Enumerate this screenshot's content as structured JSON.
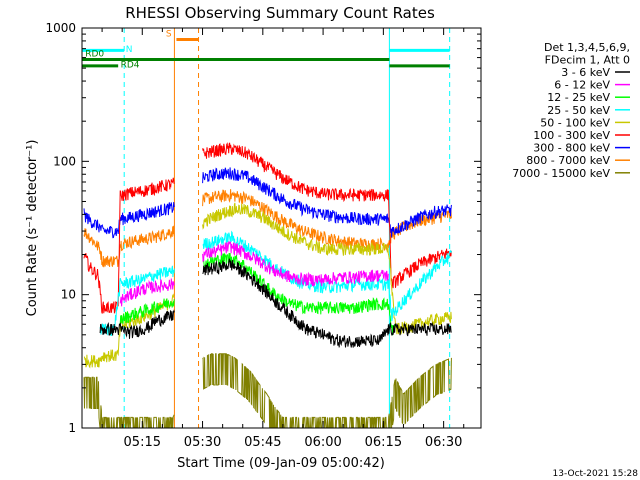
{
  "chart_data": {
    "type": "line",
    "title": "RHESSI Observing Summary Count Rates",
    "xlabel": "Start Time (09-Jan-09 05:00:42)",
    "ylabel": "Count Rate (s⁻¹ detector⁻¹)",
    "yscale": "log",
    "ylim": [
      1,
      1000
    ],
    "xlim": [
      "05:00:42",
      "06:40:00"
    ],
    "x_ticks": [
      "05:15",
      "05:30",
      "05:45",
      "06:00",
      "06:15",
      "06:30"
    ],
    "y_ticks": [
      "1",
      "10",
      "100",
      "1000"
    ],
    "x_tick_minutes": [
      15,
      30,
      45,
      60,
      75,
      90
    ],
    "legend": {
      "position": "top-right",
      "header": [
        "Det 1,3,4,5,6,9,",
        "FDecim 1, Att 0"
      ],
      "entries": [
        {
          "name": "3 - 6 keV",
          "color": "#000000"
        },
        {
          "name": "6 - 12 keV",
          "color": "#ff00ff"
        },
        {
          "name": "12 - 25 keV",
          "color": "#00ff00"
        },
        {
          "name": "25 - 50 keV",
          "color": "#00ffff"
        },
        {
          "name": "50 - 100 keV",
          "color": "#c8c800"
        },
        {
          "name": "100 - 300 keV",
          "color": "#ff0000"
        },
        {
          "name": "300 - 800 keV",
          "color": "#0000ff"
        },
        {
          "name": "800 - 7000 keV",
          "color": "#ff8000"
        },
        {
          "name": "7000 - 15000 keV",
          "color": "#808000"
        }
      ]
    },
    "annotations": [
      {
        "label": "RD0",
        "color": "#008000"
      },
      {
        "label": "RD4",
        "color": "#008000"
      },
      {
        "label": "N",
        "color": "#00ffff"
      },
      {
        "label": "S",
        "color": "#ff8000"
      }
    ],
    "flags": [
      {
        "label": "N",
        "color": "#00ffff",
        "level": 680,
        "segments": [
          [
            0,
            10.5
          ],
          [
            76.5,
            91.5
          ]
        ]
      },
      {
        "label": "S",
        "color": "#ff8000",
        "level": 820,
        "segments": [
          [
            23.5,
            29
          ]
        ]
      },
      {
        "label": "RD0",
        "color": "#008000",
        "level": 580,
        "segments": [
          [
            0,
            76.5
          ]
        ]
      },
      {
        "label": "RD4",
        "color": "#008000",
        "level": 520,
        "segments": [
          [
            0,
            9
          ],
          [
            76.5,
            91.5
          ]
        ]
      }
    ],
    "vlines": [
      {
        "minute": 10.5,
        "color": "#00ffff",
        "style": "dashed"
      },
      {
        "minute": 23.0,
        "color": "#ff8000",
        "style": "solid"
      },
      {
        "minute": 29.0,
        "color": "#ff8000",
        "style": "dashed"
      },
      {
        "minute": 76.5,
        "color": "#00ffff",
        "style": "solid"
      },
      {
        "minute": 91.5,
        "color": "#00ffff",
        "style": "dashed"
      }
    ],
    "gaps": [
      [
        23.0,
        30.0
      ]
    ],
    "series": [
      {
        "name": "3 - 6 keV",
        "color": "#000000",
        "x": [
          4.5,
          5,
          9,
          9.5,
          12,
          15,
          17,
          18,
          22.6,
          30.2,
          31,
          34,
          37,
          40,
          44,
          48,
          52,
          56,
          60,
          64,
          68,
          70,
          72,
          74,
          76.3,
          76.8,
          78,
          82,
          86,
          90,
          92
        ],
        "y": [
          5.5,
          5.5,
          5.5,
          5.5,
          5.2,
          5.5,
          5.8,
          6.3,
          7.0,
          15,
          15.5,
          16,
          17,
          15,
          12,
          9,
          7,
          5.5,
          5,
          4.5,
          4.5,
          4.5,
          4.5,
          4.5,
          5.5,
          5.5,
          5.5,
          5.5,
          5.5,
          5.5,
          5.5
        ]
      },
      {
        "name": "6 - 12 keV",
        "color": "#ff00ff",
        "x": [
          9.5,
          12,
          15,
          18,
          22.6,
          30.2,
          33,
          37,
          40,
          44,
          48,
          52,
          56,
          60,
          64,
          68,
          72,
          76.3
        ],
        "y": [
          9,
          10,
          11,
          11.5,
          12,
          20,
          21,
          23,
          21,
          18,
          15,
          13.5,
          13,
          13,
          13.5,
          13.5,
          14,
          14
        ]
      },
      {
        "name": "12 - 25 keV",
        "color": "#00ff00",
        "x": [
          9.5,
          12,
          15,
          18,
          22.6,
          30.2,
          33,
          37,
          40,
          44,
          48,
          52,
          56,
          60,
          64,
          68,
          72,
          76.3,
          77,
          78
        ],
        "y": [
          6.5,
          7,
          7.5,
          8,
          9,
          17,
          18,
          19,
          17,
          13,
          10,
          8.5,
          8,
          8,
          8,
          8,
          8.5,
          8.5,
          5.5,
          5.5
        ]
      },
      {
        "name": "25 - 50 keV",
        "color": "#00ffff",
        "x": [
          4.5,
          5,
          8,
          9.5,
          12,
          15,
          18,
          22.6,
          30.2,
          33,
          37,
          40,
          44,
          48,
          52,
          56,
          60,
          64,
          68,
          72,
          76.3,
          77,
          80,
          84,
          88,
          92
        ],
        "y": [
          5.5,
          5.5,
          5.5,
          12,
          12.5,
          13,
          14,
          15,
          24,
          25,
          27,
          24,
          20,
          16,
          13.5,
          12,
          11.5,
          11.5,
          12,
          12,
          12,
          7,
          9,
          12,
          16,
          20
        ]
      },
      {
        "name": "50 - 100 keV",
        "color": "#c8c800",
        "x": [
          0.5,
          4,
          4.5,
          5,
          9,
          9.5,
          12,
          15,
          18,
          22.6,
          30.2,
          34,
          38,
          41,
          45,
          50,
          55,
          60,
          65,
          70,
          76.3,
          78,
          82,
          86,
          88,
          92
        ],
        "y": [
          3.2,
          3.2,
          3.2,
          3.5,
          3.5,
          5.8,
          6.2,
          6.8,
          7.5,
          9,
          35,
          40,
          44,
          43,
          38,
          30,
          25,
          22,
          22,
          22,
          22,
          5.5,
          5.8,
          6.3,
          6.5,
          6.8
        ]
      },
      {
        "name": "100 - 300 keV",
        "color": "#ff0000",
        "x": [
          0.5,
          2,
          4,
          5,
          9,
          9.5,
          12,
          15,
          18,
          22.6,
          30.2,
          33,
          37,
          41,
          45,
          50,
          55,
          60,
          65,
          70,
          76.3,
          77,
          80,
          84,
          88,
          92
        ],
        "y": [
          20,
          16,
          14,
          8,
          8,
          55,
          58,
          60,
          63,
          68,
          115,
          120,
          125,
          115,
          95,
          75,
          62,
          57,
          56,
          56,
          56,
          12,
          14,
          17,
          19,
          21
        ]
      },
      {
        "name": "300 - 800 keV",
        "color": "#0000ff",
        "x": [
          0.5,
          2,
          4.5,
          5,
          9,
          9.5,
          12,
          15,
          18,
          22.6,
          30.2,
          33,
          37,
          41,
          45,
          50,
          55,
          60,
          65,
          70,
          76.3,
          77,
          80,
          84,
          88,
          92
        ],
        "y": [
          40,
          36,
          32,
          30,
          30,
          37,
          38,
          40,
          42,
          45,
          75,
          80,
          82,
          77,
          65,
          52,
          44,
          40,
          38,
          37,
          37,
          30,
          33,
          38,
          42,
          43
        ]
      },
      {
        "name": "800 - 7000 keV",
        "color": "#ff8000",
        "x": [
          0.5,
          2,
          4.5,
          5,
          9,
          9.5,
          12,
          15,
          18,
          22.6,
          30.2,
          33,
          37,
          41,
          45,
          50,
          55,
          60,
          65,
          70,
          76.3,
          77,
          80,
          84,
          88,
          92
        ],
        "y": [
          30,
          27,
          22,
          18,
          18,
          24,
          25,
          26,
          27,
          30,
          52,
          54,
          56,
          53,
          45,
          36,
          30,
          27,
          25,
          24,
          24,
          28,
          32,
          36,
          38,
          40
        ]
      },
      {
        "name": "7000 - 15000 keV",
        "color": "#808000",
        "x": [
          0.5,
          2,
          4,
          5,
          8,
          9.5,
          12,
          16,
          20,
          22.6,
          30.2,
          32,
          34,
          36,
          38,
          40,
          42,
          44,
          46,
          48,
          50,
          76.3,
          78,
          80,
          84,
          88,
          92
        ],
        "y": [
          2,
          2,
          2,
          1,
          1,
          1,
          1,
          1,
          1,
          1,
          2.8,
          3,
          3,
          3,
          2.8,
          2.5,
          2.2,
          1.8,
          1.5,
          1.2,
          1,
          1,
          2,
          1.5,
          2,
          2.5,
          2.8
        ]
      }
    ]
  },
  "footer": {
    "timestamp": "13-Oct-2021 15:28"
  }
}
